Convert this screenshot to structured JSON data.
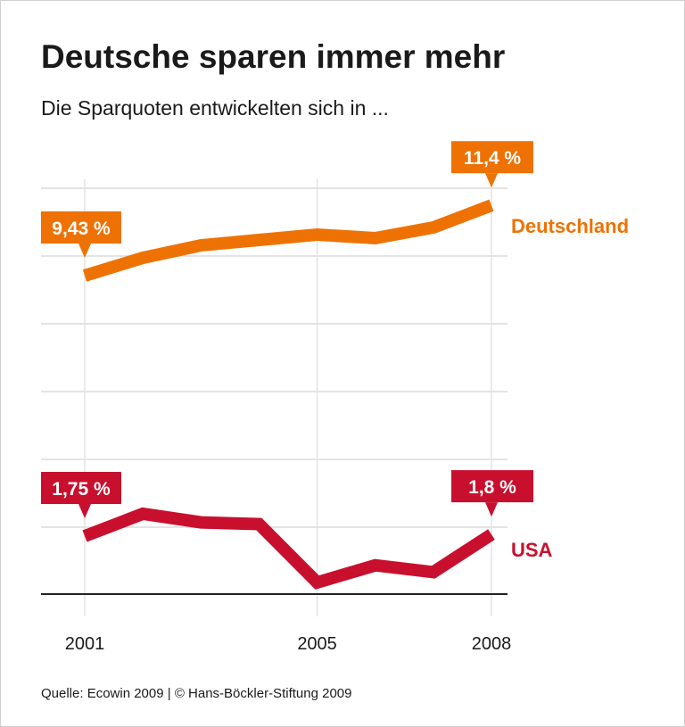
{
  "title": "Deutsche sparen immer mehr",
  "subtitle": "Die Sparquoten entwickelten sich in ...",
  "source": "Quelle: Ecowin 2009 | © Hans-Böckler-Stiftung 2009",
  "chart_data": {
    "type": "line",
    "title": "Deutsche sparen immer mehr",
    "subtitle": "Die Sparquoten entwickelten sich in ...",
    "x": [
      2001,
      2002,
      2003,
      2004,
      2005,
      2006,
      2007,
      2008
    ],
    "x_tick_labels": [
      "2001",
      "2005",
      "2008"
    ],
    "grid": true,
    "series": [
      {
        "name": "Deutschland",
        "color": "#ee7203",
        "values": [
          9.43,
          9.93,
          10.28,
          10.43,
          10.58,
          10.48,
          10.78,
          11.4
        ],
        "annotations": [
          {
            "x": 2001,
            "text": "9,43 %"
          },
          {
            "x": 2008,
            "text": "11,4 %"
          }
        ]
      },
      {
        "name": "USA",
        "color": "#c8102e",
        "values": [
          1.75,
          2.4,
          2.15,
          2.1,
          0.4,
          0.9,
          0.7,
          1.8
        ],
        "annotations": [
          {
            "x": 2001,
            "text": "1,75 %"
          },
          {
            "x": 2008,
            "text": "1,8 %"
          }
        ]
      }
    ]
  }
}
